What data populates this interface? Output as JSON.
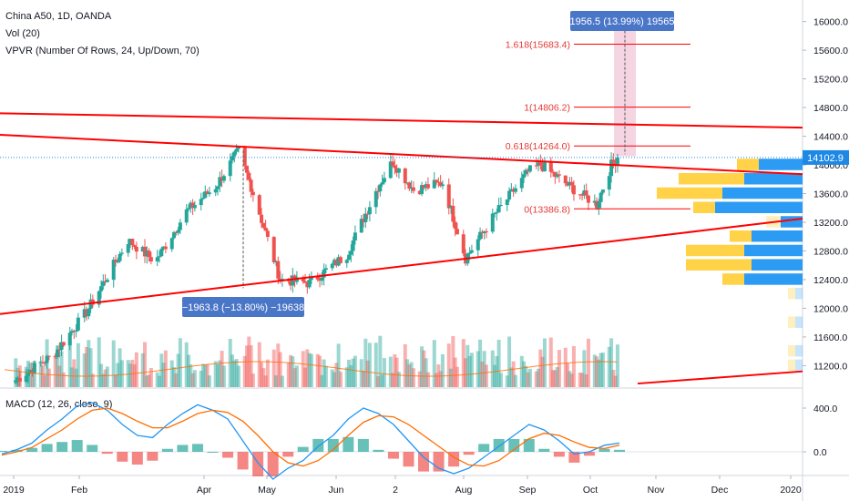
{
  "legend": {
    "symbol": "China A50, 1D, OANDA",
    "vol": "Vol (20)",
    "vpvr": "VPVR (Number Of Rows, 24, Up/Down, 70)",
    "macd": "MACD (12, 26, close, 9)"
  },
  "colors": {
    "up": "#26a69a",
    "down": "#ef5350",
    "trend": "#ff0000",
    "vpvr_up": "#2196f3",
    "vpvr_down": "#ffca28",
    "macd_line": "#2196f3",
    "signal_line": "#ff6d00",
    "badge": "#4a76c8",
    "price_label": "#1e88e5"
  },
  "chart_data": [
    {
      "type": "candlestick",
      "title": "China A50, 1D, OANDA",
      "ylim": [
        10900,
        16300
      ],
      "y_ticks": [
        "16000.0",
        "15600.0",
        "15200.0",
        "14800.0",
        "14400.0",
        "14000.0",
        "13600.0",
        "13200.0",
        "12800.0",
        "12400.0",
        "12000.0",
        "11600.0",
        "11200.0"
      ],
      "last_price": "14102.9",
      "x_ticks": [
        "2019",
        "Feb",
        "Apr",
        "May",
        "Jun",
        "2",
        "Aug",
        "Sep",
        "Oct",
        "Nov",
        "Dec",
        "2020"
      ],
      "key_points": [
        {
          "date": "2019-01-02",
          "close": 11000
        },
        {
          "date": "2019-01-20",
          "close": 11350
        },
        {
          "date": "2019-02-05",
          "close": 11950
        },
        {
          "date": "2019-02-25",
          "close": 12950
        },
        {
          "date": "2019-03-10",
          "close": 12650
        },
        {
          "date": "2019-03-25",
          "close": 13350
        },
        {
          "date": "2019-04-08",
          "close": 13700
        },
        {
          "date": "2019-04-19",
          "close": 14200
        },
        {
          "date": "2019-04-25",
          "close": 13700
        },
        {
          "date": "2019-05-09",
          "close": 12400
        },
        {
          "date": "2019-05-23",
          "close": 12350
        },
        {
          "date": "2019-06-10",
          "close": 12750
        },
        {
          "date": "2019-06-25",
          "close": 13700
        },
        {
          "date": "2019-07-02",
          "close": 14050
        },
        {
          "date": "2019-07-12",
          "close": 13650
        },
        {
          "date": "2019-07-26",
          "close": 13750
        },
        {
          "date": "2019-08-06",
          "close": 12700
        },
        {
          "date": "2019-08-20",
          "close": 13300
        },
        {
          "date": "2019-09-05",
          "close": 13900
        },
        {
          "date": "2019-09-11",
          "close": 14000
        },
        {
          "date": "2019-09-25",
          "close": 13700
        },
        {
          "date": "2019-10-08",
          "close": 13450
        },
        {
          "date": "2019-10-15",
          "close": 14000
        },
        {
          "date": "2019-10-18",
          "close": 14102.9
        }
      ],
      "fibonacci": [
        {
          "label": "1.618(15683.4)",
          "value": 15683.4
        },
        {
          "label": "1(14806.2)",
          "value": 14806.2
        },
        {
          "label": "0.618(14264.0)",
          "value": 14264.0
        },
        {
          "label": "0(13386.8)",
          "value": 13386.8
        }
      ],
      "annotations": {
        "projection_label": "1956.5 (13.99%) 19565",
        "drop_label": "−1963.8 (−13.80%) −19638"
      },
      "vpvr_rows": [
        {
          "price": 14000,
          "up": 0.3,
          "down": 0.15
        },
        {
          "price": 13800,
          "up": 0.4,
          "down": 0.45
        },
        {
          "price": 13600,
          "up": 0.55,
          "down": 0.45
        },
        {
          "price": 13400,
          "up": 0.6,
          "down": 0.15
        },
        {
          "price": 13200,
          "up": 0.15,
          "down": 0.1
        },
        {
          "price": 13000,
          "up": 0.35,
          "down": 0.15
        },
        {
          "price": 12800,
          "up": 0.4,
          "down": 0.4
        },
        {
          "price": 12600,
          "up": 0.35,
          "down": 0.45
        },
        {
          "price": 12400,
          "up": 0.4,
          "down": 0.15
        },
        {
          "price": 12200,
          "up": 0.05,
          "down": 0.05
        },
        {
          "price": 11800,
          "up": 0.05,
          "down": 0.05
        },
        {
          "price": 11400,
          "up": 0.05,
          "down": 0.05
        },
        {
          "price": 11200,
          "up": 0.05,
          "down": 0.05
        }
      ]
    },
    {
      "type": "line",
      "title": "MACD (12, 26, close, 9)",
      "ylim": [
        -200,
        550
      ],
      "y_ticks": [
        "400.0",
        "0.0"
      ],
      "series": [
        {
          "name": "MACD",
          "values": [
            -20,
            20,
            80,
            200,
            300,
            420,
            450,
            380,
            250,
            150,
            130,
            250,
            350,
            430,
            380,
            300,
            100,
            -100,
            -250,
            -150,
            -80,
            50,
            150,
            300,
            400,
            350,
            250,
            100,
            -50,
            -150,
            -200,
            -150,
            -50,
            50,
            150,
            250,
            200,
            100,
            -20,
            0,
            60,
            80
          ]
        },
        {
          "name": "Signal",
          "values": [
            -30,
            0,
            40,
            120,
            200,
            300,
            380,
            400,
            350,
            280,
            220,
            220,
            280,
            350,
            380,
            360,
            280,
            150,
            0,
            -100,
            -130,
            -80,
            20,
            150,
            270,
            330,
            320,
            250,
            150,
            50,
            -50,
            -120,
            -130,
            -80,
            20,
            120,
            170,
            150,
            90,
            40,
            30,
            60
          ]
        }
      ]
    }
  ]
}
